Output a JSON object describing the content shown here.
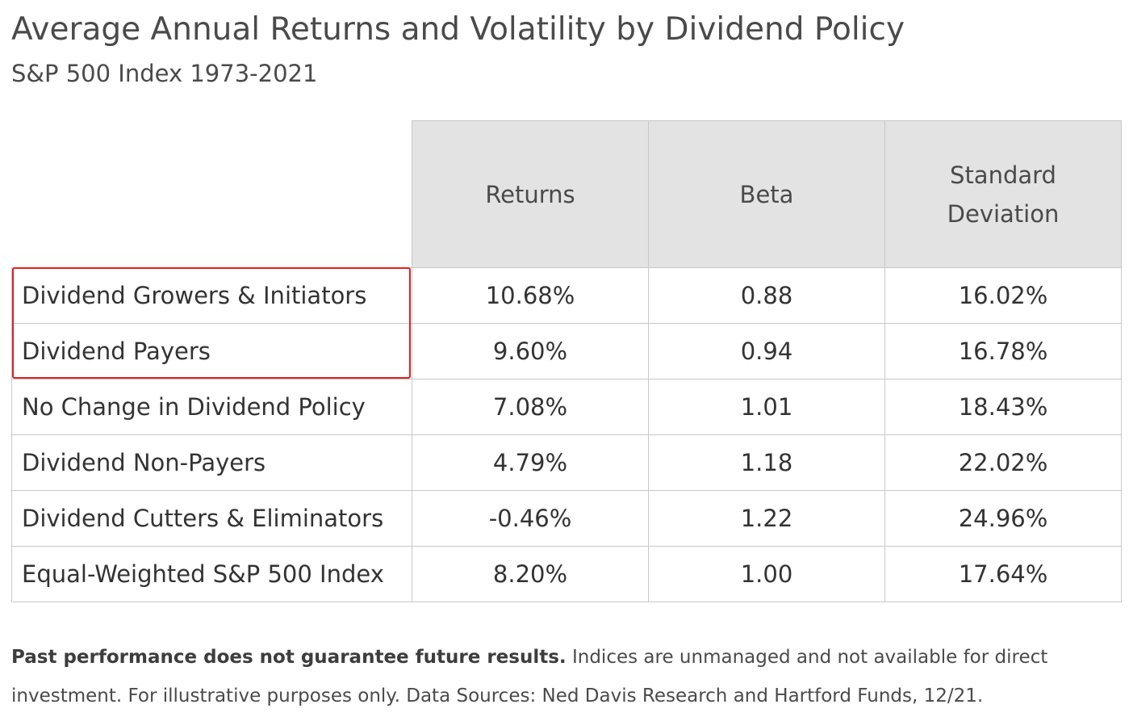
{
  "chart_data": {
    "type": "table",
    "title": "Average Annual Returns and Volatility by Dividend Policy",
    "subtitle": "S&P 500 Index 1973-2021",
    "columns": [
      "Returns",
      "Beta",
      "Standard Deviation"
    ],
    "column_lines": [
      [
        "Returns"
      ],
      [
        "Beta"
      ],
      [
        "Standard",
        "Deviation"
      ]
    ],
    "rows": [
      {
        "label": "Dividend Growers & Initiators",
        "returns": "10.68%",
        "beta": "0.88",
        "std_dev": "16.02%"
      },
      {
        "label": "Dividend Payers",
        "returns": "9.60%",
        "beta": "0.94",
        "std_dev": "16.78%"
      },
      {
        "label": "No Change in Dividend Policy",
        "returns": "7.08%",
        "beta": "1.01",
        "std_dev": "18.43%"
      },
      {
        "label": "Dividend Non-Payers",
        "returns": "4.79%",
        "beta": "1.18",
        "std_dev": "22.02%"
      },
      {
        "label": "Dividend Cutters & Eliminators",
        "returns": "-0.46%",
        "beta": "1.22",
        "std_dev": "24.96%"
      },
      {
        "label": "Equal-Weighted S&P 500 Index",
        "returns": "8.20%",
        "beta": "1.00",
        "std_dev": "17.64%"
      }
    ],
    "highlighted_rows": [
      "Dividend Growers & Initiators",
      "Dividend Payers"
    ]
  },
  "footnote": {
    "bold": "Past performance does not guarantee future results.",
    "text": " Indices are unmanaged and not available for direct investment. For illustrative purposes only. Data Sources: Ned Davis Research and Hartford Funds, 12/21."
  },
  "colors": {
    "header_bg": "#e3e3e3",
    "border": "#c8c8c8",
    "highlight": "#e02020",
    "text": "#4a4a4a"
  }
}
